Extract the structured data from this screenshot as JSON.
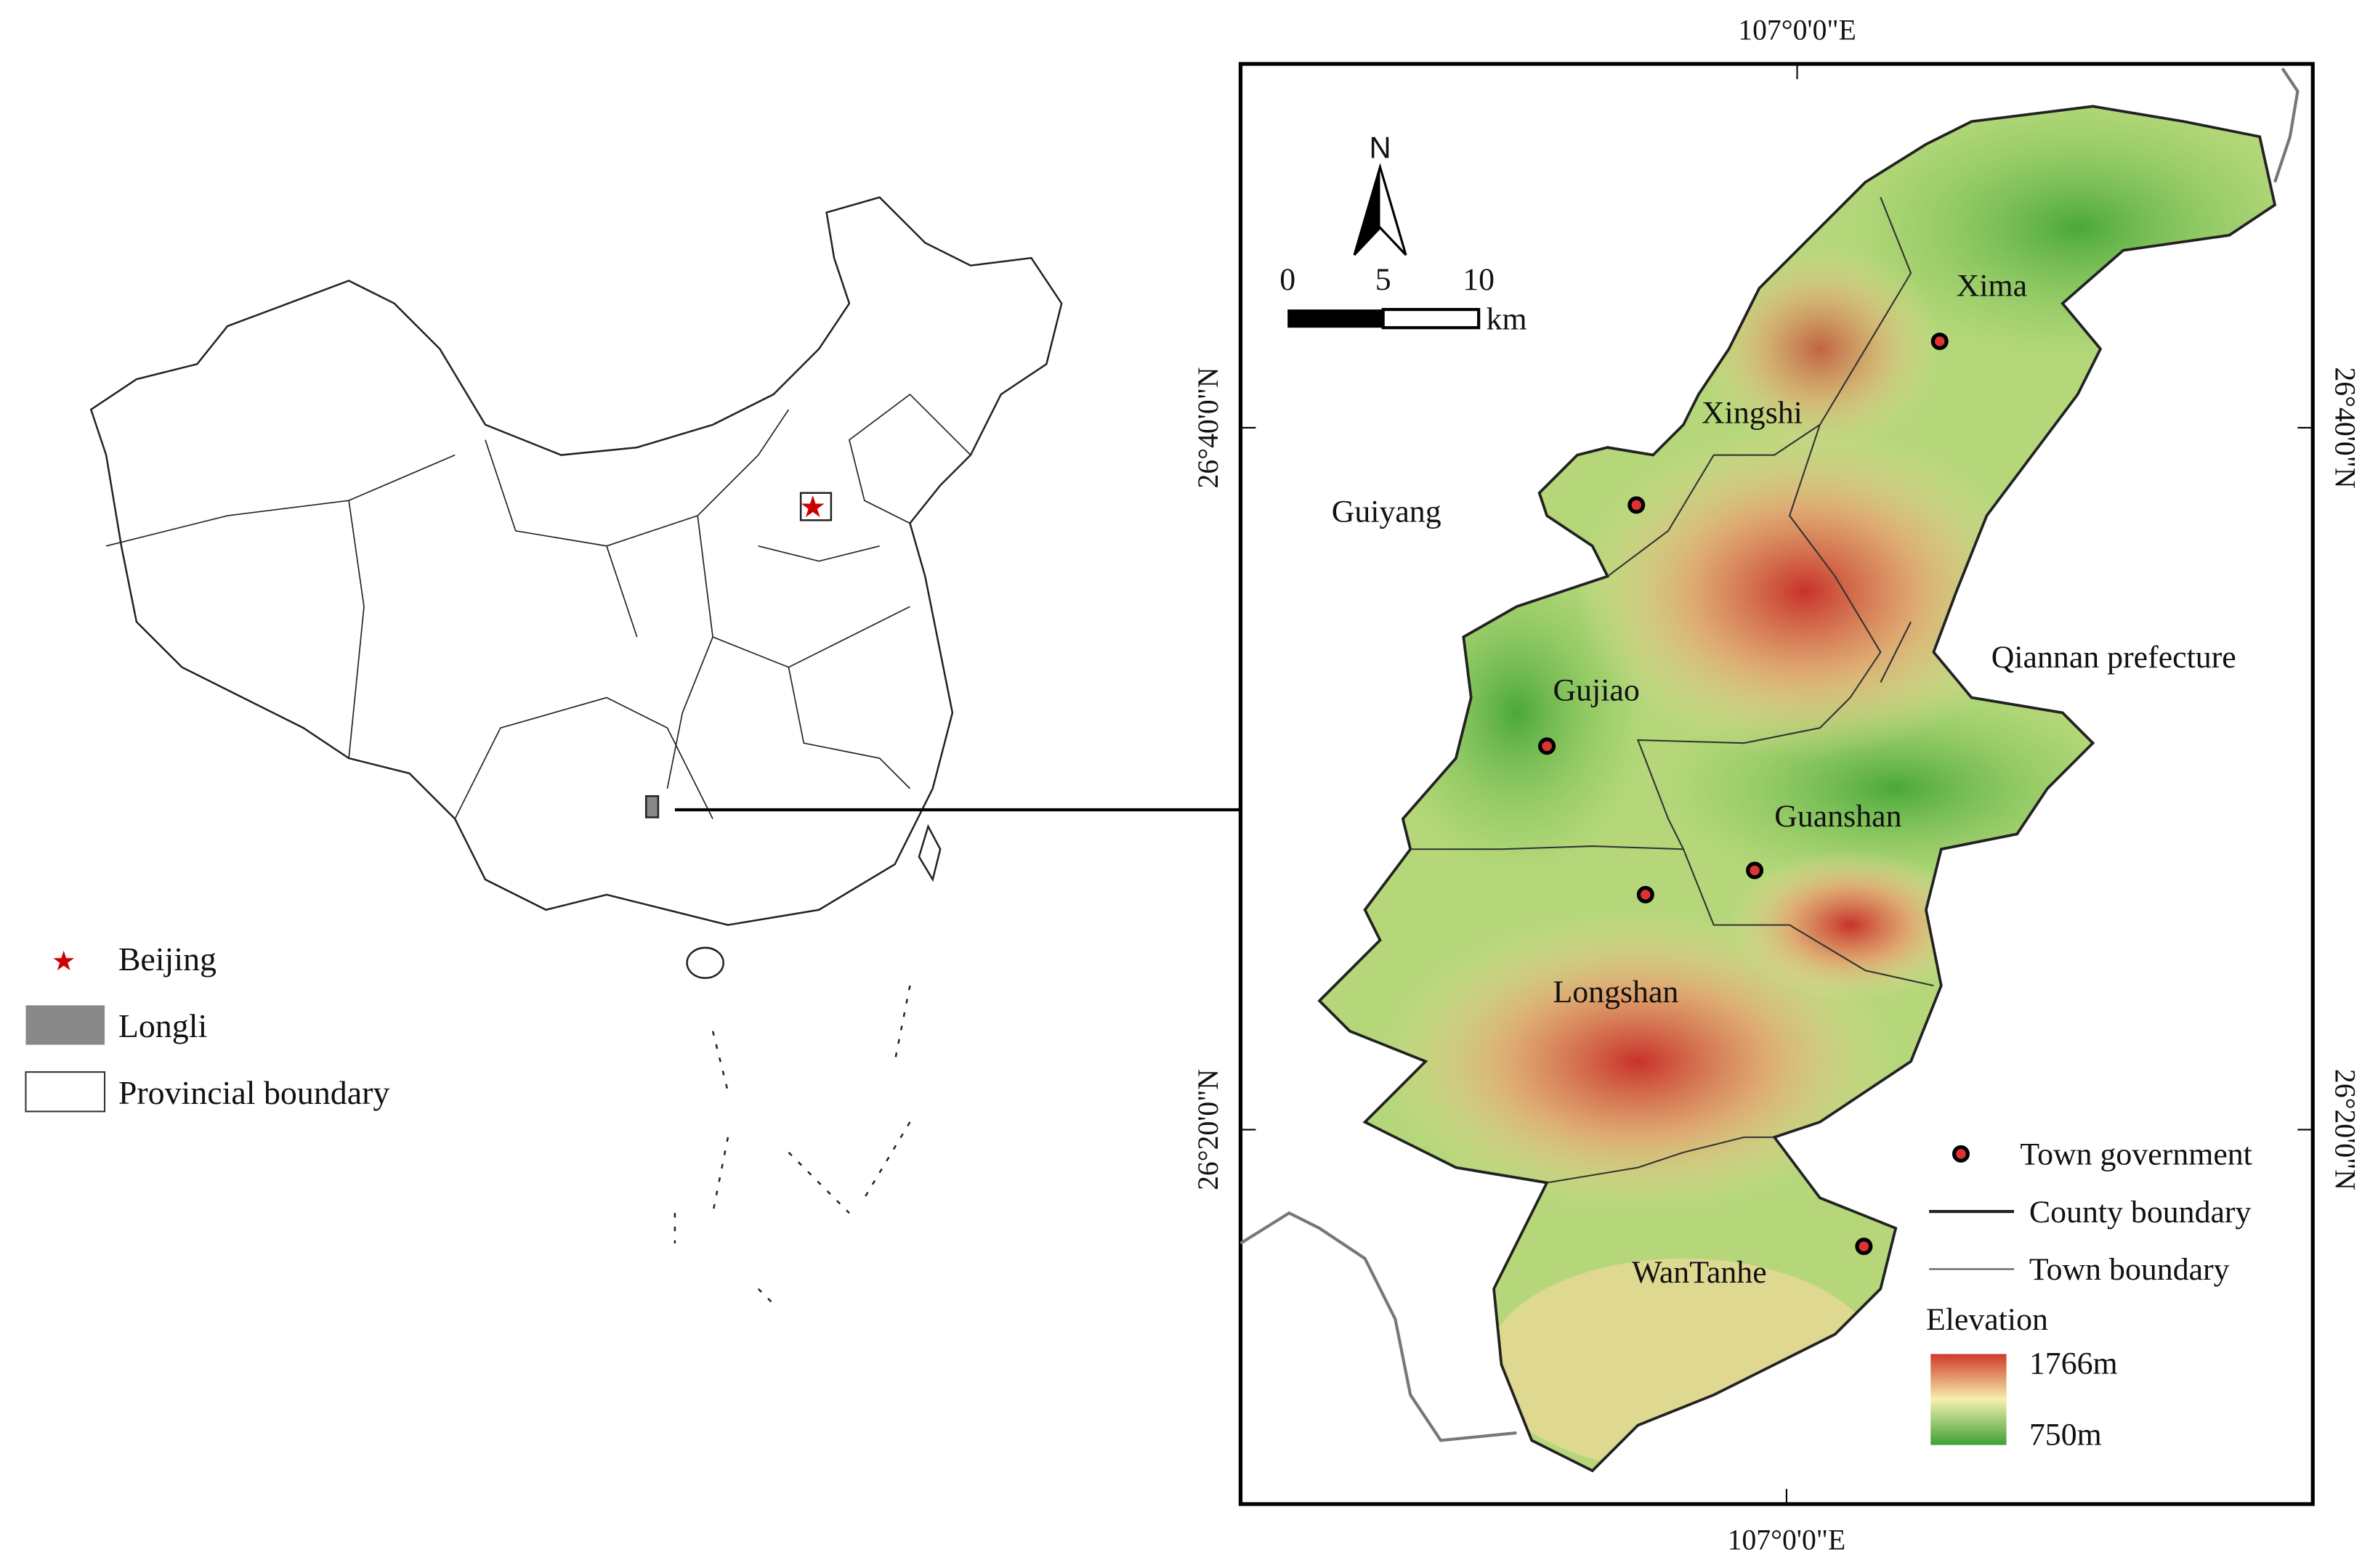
{
  "overview_legend": {
    "beijing": "Beijing",
    "longli": "Longli",
    "provincial_boundary": "Provincial boundary"
  },
  "frame": {
    "top_longitude": "107°0'0\"E",
    "bottom_longitude": "107°0'0\"E",
    "left_latitude_upper": "26°40'0\"N",
    "left_latitude_lower": "26°20'0\"N",
    "right_latitude_upper": "26°40'0\"N",
    "right_latitude_lower": "26°20'0\"N"
  },
  "north_arrow": "N",
  "scale_bar": {
    "ticks": [
      "0",
      "5",
      "10"
    ],
    "unit": "km"
  },
  "places": {
    "xima": "Xima",
    "xingshi": "Xingshi",
    "guiyang": "Guiyang",
    "qiannan": "Qiannan prefecture",
    "gujiao": "Gujiao",
    "guanshan": "Guanshan",
    "longshan": "Longshan",
    "wantanhe": "WanTanhe"
  },
  "map_legend": {
    "town_government": "Town government",
    "county_boundary": "County boundary",
    "town_boundary": "Town boundary",
    "elevation": "Elevation",
    "elevation_max": "1766m",
    "elevation_min": "750m"
  }
}
